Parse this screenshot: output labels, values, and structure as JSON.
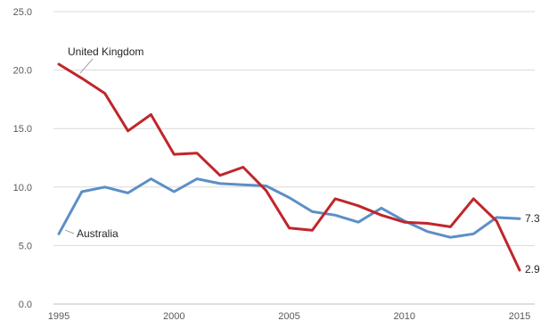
{
  "chart_data": {
    "type": "line",
    "title": "",
    "xlabel": "",
    "ylabel": "",
    "x": [
      1995,
      1996,
      1997,
      1998,
      1999,
      2000,
      2001,
      2002,
      2003,
      2004,
      2005,
      2006,
      2007,
      2008,
      2009,
      2010,
      2011,
      2012,
      2013,
      2014,
      2015
    ],
    "xticks": [
      "1995",
      "2000",
      "2005",
      "2010",
      "2015"
    ],
    "xlim": [
      1995,
      2015
    ],
    "yticks": [
      "0.0",
      "5.0",
      "10.0",
      "15.0",
      "20.0",
      "25.0"
    ],
    "ylim": [
      0,
      25
    ],
    "grid": true,
    "legend": "none",
    "series": [
      {
        "name": "United Kingdom",
        "color": "#c0262b",
        "values": [
          20.5,
          19.3,
          18.0,
          14.8,
          16.2,
          12.8,
          12.9,
          11.0,
          11.7,
          9.7,
          6.5,
          6.3,
          9.0,
          8.4,
          7.6,
          7.0,
          6.9,
          6.6,
          9.0,
          7.1,
          2.9
        ],
        "end_label": "2.9"
      },
      {
        "name": "Australia",
        "color": "#5b8fc7",
        "values": [
          6.0,
          9.6,
          10.0,
          9.5,
          10.7,
          9.6,
          10.7,
          10.3,
          10.2,
          10.1,
          9.1,
          7.9,
          7.6,
          7.0,
          8.2,
          7.1,
          6.2,
          5.7,
          6.0,
          7.4,
          7.3
        ],
        "end_label": "7.3"
      }
    ]
  }
}
